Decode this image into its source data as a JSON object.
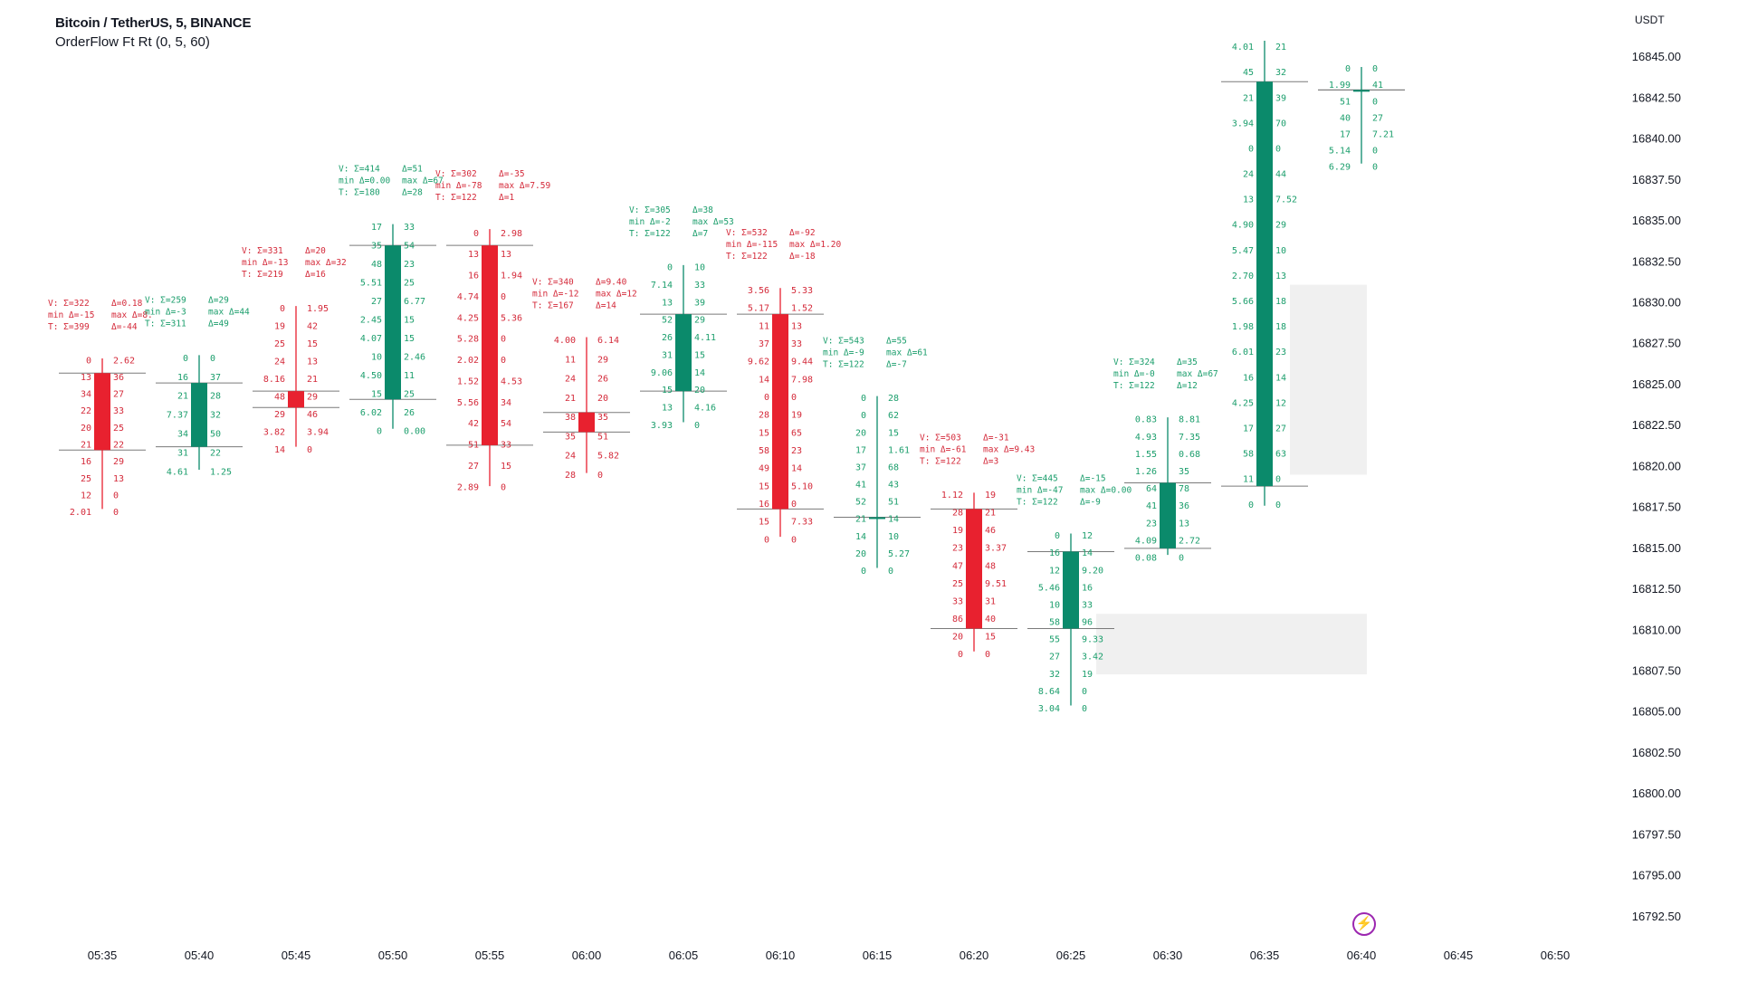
{
  "legend": {
    "symbol": "Bitcoin / TetherUS, 5, BINANCE",
    "study": "OrderFlow Ft Rt (0, 5, 60)"
  },
  "currency_label": "USDT",
  "lightning_icon": "lightning-icon",
  "colors": {
    "up": "#0b8a6b",
    "down": "#e8212f",
    "green_text": "#1b9e6c",
    "red_text": "#d42a3a",
    "zone": "#ececec"
  },
  "chart_data": {
    "type": "candlestick-orderflow",
    "title": "Bitcoin / TetherUS, 5, BINANCE",
    "study": "OrderFlow Ft Rt (0, 5, 60)",
    "currency": "USDT",
    "ylim": [
      16791,
      16846.5
    ],
    "y_ticks": [
      "16845.00",
      "16842.50",
      "16840.00",
      "16837.50",
      "16835.00",
      "16832.50",
      "16830.00",
      "16827.50",
      "16825.00",
      "16822.50",
      "16820.00",
      "16817.50",
      "16815.00",
      "16812.50",
      "16810.00",
      "16807.50",
      "16805.00",
      "16802.50",
      "16800.00",
      "16797.50",
      "16795.00",
      "16792.50"
    ],
    "x_ticks": [
      "05:35",
      "05:40",
      "05:45",
      "05:50",
      "05:55",
      "06:00",
      "06:05",
      "06:10",
      "06:15",
      "06:20",
      "06:25",
      "06:30",
      "06:35",
      "06:40",
      "06:45",
      "06:50"
    ],
    "candles": [
      {
        "time": "05:35",
        "open": 16825.7,
        "high": 16826.6,
        "low": 16817.4,
        "close": 16821.0,
        "stats": [
          "V: Σ=322",
          "min Δ=-15",
          "T: Σ=399",
          "Δ=0.18",
          "max Δ=8.",
          "Δ=-44"
        ],
        "levels": [
          [
            "0",
            "2.62"
          ],
          [
            "13",
            "36"
          ],
          [
            "34",
            "27"
          ],
          [
            "22",
            "33"
          ],
          [
            "20",
            "25"
          ],
          [
            "21",
            "22"
          ],
          [
            "16",
            "29"
          ],
          [
            "25",
            "13"
          ],
          [
            "12",
            "0"
          ],
          [
            "2.01",
            "0"
          ]
        ]
      },
      {
        "time": "05:40",
        "open": 16821.2,
        "high": 16826.8,
        "low": 16819.8,
        "close": 16825.1,
        "stats": [
          "V: Σ=259",
          "min Δ=-3",
          "T: Σ=311",
          "Δ=29",
          "max Δ=44",
          "Δ=49"
        ],
        "levels": [
          [
            "0",
            "0"
          ],
          [
            "16",
            "37"
          ],
          [
            "21",
            "28"
          ],
          [
            "7.37",
            "32"
          ],
          [
            "34",
            "50"
          ],
          [
            "31",
            "22"
          ],
          [
            "4.61",
            "1.25"
          ]
        ]
      },
      {
        "time": "05:45",
        "open": 16824.6,
        "high": 16829.8,
        "low": 16821.2,
        "close": 16823.6,
        "stats": [
          "V: Σ=331",
          "min Δ=-13",
          "T: Σ=219",
          "Δ=20",
          "max Δ=32",
          "Δ=16"
        ],
        "levels": [
          [
            "0",
            "1.95"
          ],
          [
            "19",
            "42"
          ],
          [
            "25",
            "15"
          ],
          [
            "24",
            "13"
          ],
          [
            "8.16",
            "21"
          ],
          [
            "48",
            "29"
          ],
          [
            "29",
            "46"
          ],
          [
            "3.82",
            "3.94"
          ],
          [
            "14",
            "0"
          ]
        ]
      },
      {
        "time": "05:50",
        "open": 16824.1,
        "high": 16834.8,
        "low": 16822.3,
        "close": 16833.5,
        "stats": [
          "V: Σ=414",
          "min Δ=0.00",
          "T: Σ=180",
          "Δ=51",
          "max Δ=67",
          "Δ=28"
        ],
        "levels": [
          [
            "17",
            "33"
          ],
          [
            "35",
            "54"
          ],
          [
            "48",
            "23"
          ],
          [
            "5.51",
            "25"
          ],
          [
            "27",
            "6.77"
          ],
          [
            "2.45",
            "15"
          ],
          [
            "4.07",
            "15"
          ],
          [
            "10",
            "2.46"
          ],
          [
            "4.50",
            "11"
          ],
          [
            "15",
            "25"
          ],
          [
            "6.02",
            "26"
          ],
          [
            "0",
            "0.00"
          ]
        ]
      },
      {
        "time": "05:55",
        "open": 16833.5,
        "high": 16834.5,
        "low": 16818.8,
        "close": 16821.3,
        "stats": [
          "V: Σ=302",
          "min Δ=-78",
          "T: Σ=122",
          "Δ=-35",
          "max Δ=7.59",
          "Δ=1"
        ],
        "levels": [
          [
            "0",
            "2.98"
          ],
          [
            "13",
            "13"
          ],
          [
            "16",
            "1.94"
          ],
          [
            "4.74",
            "0"
          ],
          [
            "4.25",
            "5.36"
          ],
          [
            "5.28",
            "0"
          ],
          [
            "2.02",
            "0"
          ],
          [
            "1.52",
            "4.53"
          ],
          [
            "5.56",
            "34"
          ],
          [
            "42",
            "54"
          ],
          [
            "51",
            "33"
          ],
          [
            "27",
            "15"
          ],
          [
            "2.89",
            "0"
          ]
        ]
      },
      {
        "time": "06:00",
        "open": 16823.3,
        "high": 16827.9,
        "low": 16819.6,
        "close": 16822.1,
        "stats": [
          "V: Σ=340",
          "min Δ=-12",
          "T: Σ=167",
          "Δ=9.40",
          "max Δ=12",
          "Δ=14"
        ],
        "levels": [
          [
            "4.00",
            "6.14"
          ],
          [
            "11",
            "29"
          ],
          [
            "24",
            "26"
          ],
          [
            "21",
            "20"
          ],
          [
            "38",
            "35"
          ],
          [
            "35",
            "51"
          ],
          [
            "24",
            "5.82"
          ],
          [
            "28",
            "0"
          ]
        ]
      },
      {
        "time": "06:05",
        "open": 16824.6,
        "high": 16832.3,
        "low": 16822.7,
        "close": 16829.3,
        "stats": [
          "V: Σ=305",
          "min Δ=-2",
          "T: Σ=122",
          "Δ=38",
          "max Δ=53",
          "Δ=7"
        ],
        "levels": [
          [
            "0",
            "10"
          ],
          [
            "7.14",
            "33"
          ],
          [
            "13",
            "39"
          ],
          [
            "52",
            "29"
          ],
          [
            "26",
            "4.11"
          ],
          [
            "31",
            "15"
          ],
          [
            "9.06",
            "14"
          ],
          [
            "15",
            "20"
          ],
          [
            "13",
            "4.16"
          ],
          [
            "3.93",
            "0"
          ]
        ]
      },
      {
        "time": "06:10",
        "open": 16829.3,
        "high": 16830.9,
        "low": 16815.7,
        "close": 16817.4,
        "stats": [
          "V: Σ=532",
          "min Δ=-115",
          "T: Σ=122",
          "Δ=-92",
          "max Δ=1.20",
          "Δ=-18"
        ],
        "levels": [
          [
            "3.56",
            "5.33"
          ],
          [
            "5.17",
            "1.52"
          ],
          [
            "11",
            "13"
          ],
          [
            "37",
            "33"
          ],
          [
            "9.62",
            "9.44"
          ],
          [
            "14",
            "7.98"
          ],
          [
            "0",
            "0"
          ],
          [
            "28",
            "19"
          ],
          [
            "15",
            "65"
          ],
          [
            "58",
            "23"
          ],
          [
            "49",
            "14"
          ],
          [
            "15",
            "5.10"
          ],
          [
            "16",
            "0"
          ],
          [
            "15",
            "7.33"
          ],
          [
            "0",
            "0"
          ]
        ]
      },
      {
        "time": "06:15",
        "open": 16816.9,
        "high": 16824.3,
        "low": 16813.8,
        "close": 16816.9,
        "stats": [
          "V: Σ=543",
          "min Δ=-9",
          "T: Σ=122",
          "Δ=55",
          "max Δ=61",
          "Δ=-7"
        ],
        "levels": [
          [
            "0",
            "28"
          ],
          [
            "0",
            "62"
          ],
          [
            "20",
            "15"
          ],
          [
            "17",
            "1.61"
          ],
          [
            "37",
            "68"
          ],
          [
            "41",
            "43"
          ],
          [
            "52",
            "51"
          ],
          [
            "21",
            "14"
          ],
          [
            "14",
            "10"
          ],
          [
            "20",
            "5.27"
          ],
          [
            "0",
            "0"
          ]
        ]
      },
      {
        "time": "06:20",
        "open": 16817.4,
        "high": 16818.4,
        "low": 16808.7,
        "close": 16810.1,
        "stats": [
          "V: Σ=503",
          "min Δ=-61",
          "T: Σ=122",
          "Δ=-31",
          "max Δ=9.43",
          "Δ=3"
        ],
        "levels": [
          [
            "1.12",
            "19"
          ],
          [
            "28",
            "21"
          ],
          [
            "19",
            "46"
          ],
          [
            "23",
            "3.37"
          ],
          [
            "47",
            "48"
          ],
          [
            "25",
            "9.51"
          ],
          [
            "33",
            "31"
          ],
          [
            "86",
            "40"
          ],
          [
            "20",
            "15"
          ],
          [
            "0",
            "0"
          ]
        ]
      },
      {
        "time": "06:25",
        "open": 16810.1,
        "high": 16815.9,
        "low": 16805.4,
        "close": 16814.8,
        "stats": [
          "V: Σ=445",
          "min Δ=-47",
          "T: Σ=122",
          "Δ=-15",
          "max Δ=0.00",
          "Δ=-9"
        ],
        "levels": [
          [
            "0",
            "12"
          ],
          [
            "16",
            "14"
          ],
          [
            "12",
            "9.20"
          ],
          [
            "5.46",
            "16"
          ],
          [
            "10",
            "33"
          ],
          [
            "58",
            "96"
          ],
          [
            "55",
            "9.33"
          ],
          [
            "27",
            "3.42"
          ],
          [
            "32",
            "19"
          ],
          [
            "8.64",
            "0"
          ],
          [
            "3.04",
            "0"
          ]
        ]
      },
      {
        "time": "06:30",
        "open": 16815.0,
        "high": 16823.0,
        "low": 16814.6,
        "close": 16819.0,
        "stats": [
          "V: Σ=324",
          "min Δ=-0",
          "T: Σ=122",
          "Δ=35",
          "max Δ=67",
          "Δ=12"
        ],
        "levels": [
          [
            "0.83",
            "8.81"
          ],
          [
            "4.93",
            "7.35"
          ],
          [
            "1.55",
            "0.68"
          ],
          [
            "1.26",
            "35"
          ],
          [
            "64",
            "78"
          ],
          [
            "41",
            "36"
          ],
          [
            "23",
            "13"
          ],
          [
            "4.09",
            "2.72"
          ],
          [
            "0.08",
            "0"
          ]
        ]
      },
      {
        "time": "06:35",
        "open": 16818.8,
        "high": 16846.0,
        "low": 16817.6,
        "close": 16843.5,
        "stats": [],
        "levels": [
          [
            "4.01",
            "21"
          ],
          [
            "45",
            "32"
          ],
          [
            "21",
            "39"
          ],
          [
            "3.94",
            "70"
          ],
          [
            "0",
            "0"
          ],
          [
            "24",
            "44"
          ],
          [
            "13",
            "7.52"
          ],
          [
            "4.90",
            "29"
          ],
          [
            "5.47",
            "10"
          ],
          [
            "2.70",
            "13"
          ],
          [
            "5.66",
            "18"
          ],
          [
            "1.98",
            "18"
          ],
          [
            "6.01",
            "23"
          ],
          [
            "16",
            "14"
          ],
          [
            "4.25",
            "12"
          ],
          [
            "17",
            "27"
          ],
          [
            "58",
            "63"
          ],
          [
            "11",
            "0"
          ],
          [
            "0",
            "0"
          ]
        ]
      },
      {
        "time": "06:40",
        "open": 16843.0,
        "high": 16844.4,
        "low": 16838.5,
        "close": 16843.0,
        "stats": [],
        "levels": [
          [
            "0",
            "0"
          ],
          [
            "1.99",
            "41"
          ],
          [
            "51",
            "0"
          ],
          [
            "40",
            "27"
          ],
          [
            "17",
            "7.21"
          ],
          [
            "5.14",
            "0"
          ],
          [
            "6.29",
            "0"
          ]
        ]
      }
    ],
    "zones": [
      {
        "from": 16831.1,
        "to": 16819.5,
        "start": "06:35"
      },
      {
        "from": 16811.0,
        "to": 16807.3,
        "start": "06:25"
      },
      {
        "from": 16843.8,
        "to": 16841.2,
        "start": "06:40"
      }
    ]
  }
}
